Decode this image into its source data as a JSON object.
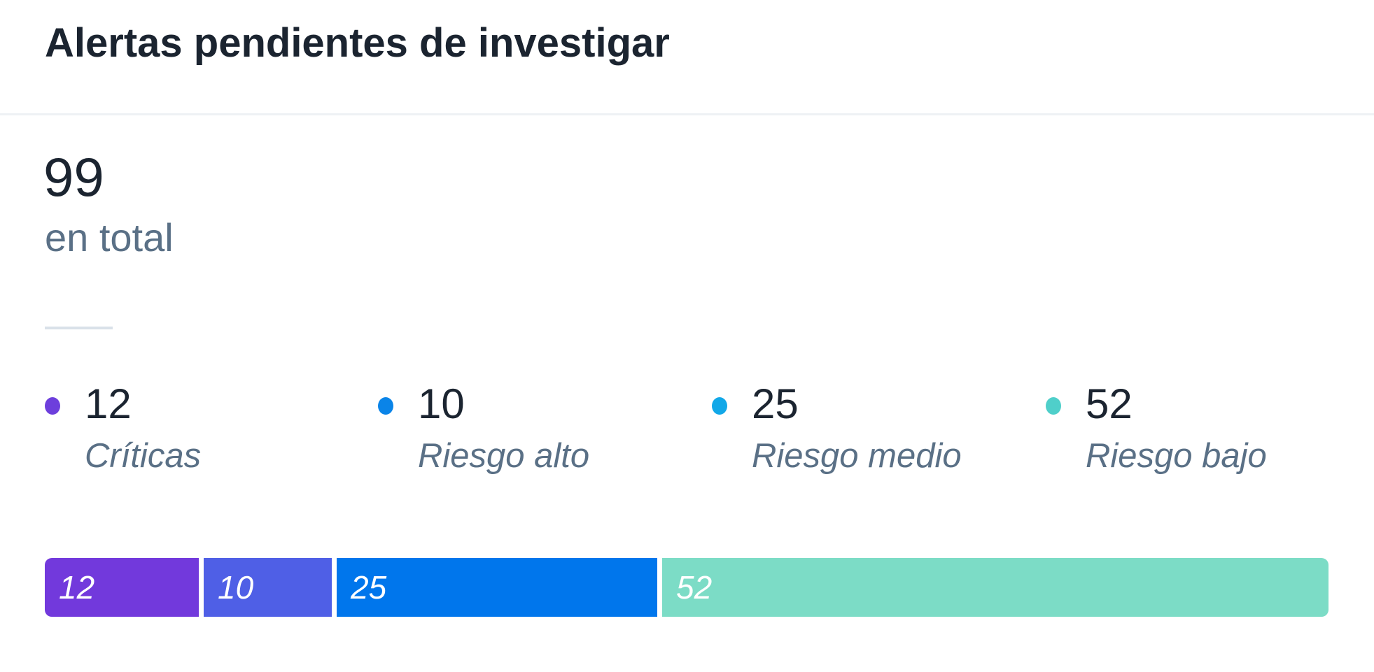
{
  "card": {
    "title": "Alertas pendientes de investigar"
  },
  "summary": {
    "total": "99",
    "total_label": "en total"
  },
  "legend": [
    {
      "value": "12",
      "label": "Críticas",
      "dot_color": "#6d3fdc"
    },
    {
      "value": "10",
      "label": "Riesgo alto",
      "dot_color": "#0a84e8"
    },
    {
      "value": "25",
      "label": "Riesgo medio",
      "dot_color": "#12a8e8"
    },
    {
      "value": "52",
      "label": "Riesgo bajo",
      "dot_color": "#4fcfca"
    }
  ],
  "chart_data": {
    "type": "bar",
    "orientation": "horizontal-stacked",
    "categories": [
      "Críticas",
      "Riesgo alto",
      "Riesgo medio",
      "Riesgo bajo"
    ],
    "values": [
      12,
      10,
      25,
      52
    ],
    "labels": [
      "12",
      "10",
      "25",
      "52"
    ],
    "colors": [
      "#7239dc",
      "#4f5fe6",
      "#0076ec",
      "#7cdcc6"
    ]
  }
}
